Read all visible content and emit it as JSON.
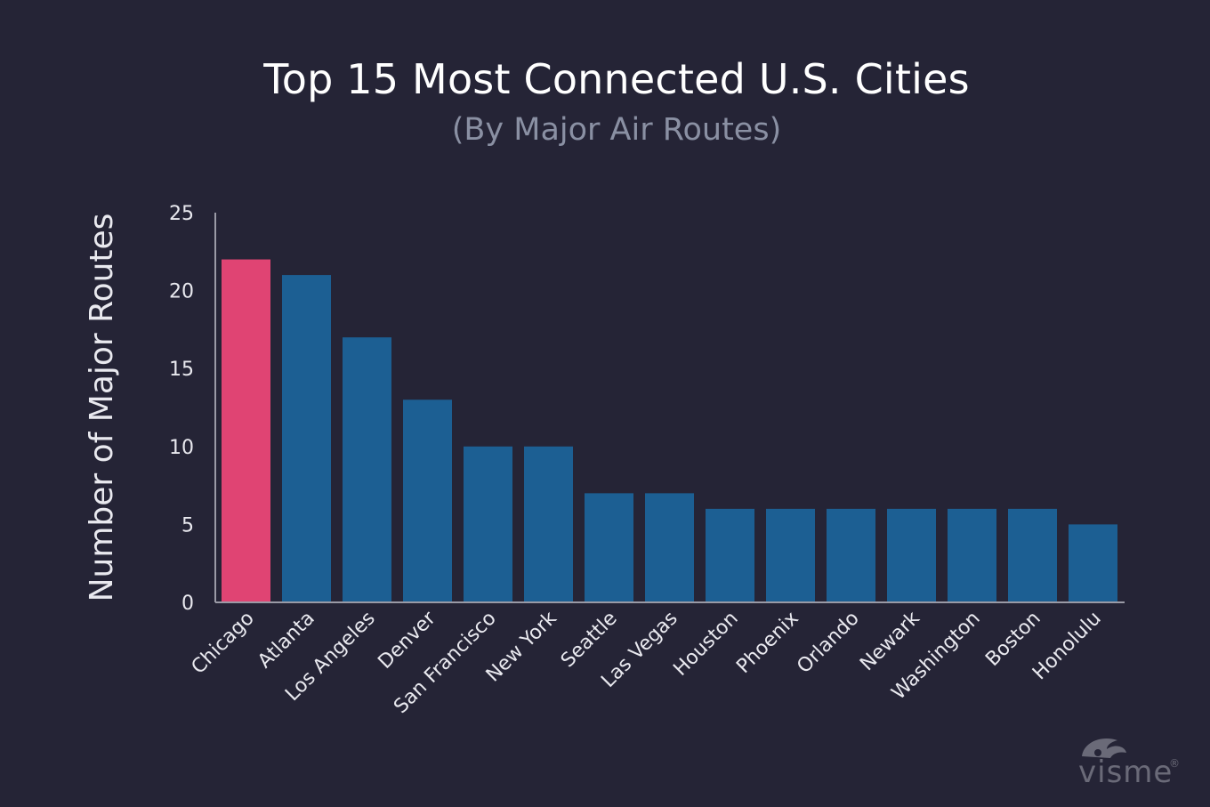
{
  "chart_data": {
    "type": "bar",
    "title": "Top 15 Most Connected U.S. Cities",
    "subtitle": "(By Major Air Routes)",
    "xlabel": "",
    "ylabel": "Number of Major Routes",
    "ylim": [
      0,
      25
    ],
    "yticks": [
      0,
      5,
      10,
      15,
      20,
      25
    ],
    "grid": false,
    "categories": [
      "Chicago",
      "Atlanta",
      "Los Angeles",
      "Denver",
      "San Francisco",
      "New York",
      "Seattle",
      "Las Vegas",
      "Houston",
      "Phoenix",
      "Orlando",
      "Newark",
      "Washington",
      "Boston",
      "Honolulu"
    ],
    "values": [
      22,
      21,
      17,
      13,
      10,
      10,
      7,
      7,
      6,
      6,
      6,
      6,
      6,
      6,
      5
    ],
    "highlight_index": 0,
    "colors": {
      "highlight": "#e04473",
      "bar": "#1c5f93",
      "axis": "#9a9aa6",
      "text": "#e9e9ef",
      "background": "#252436"
    }
  },
  "watermark": {
    "text": "visme",
    "mark": "®",
    "icon": "visme-chameleon-logo"
  }
}
